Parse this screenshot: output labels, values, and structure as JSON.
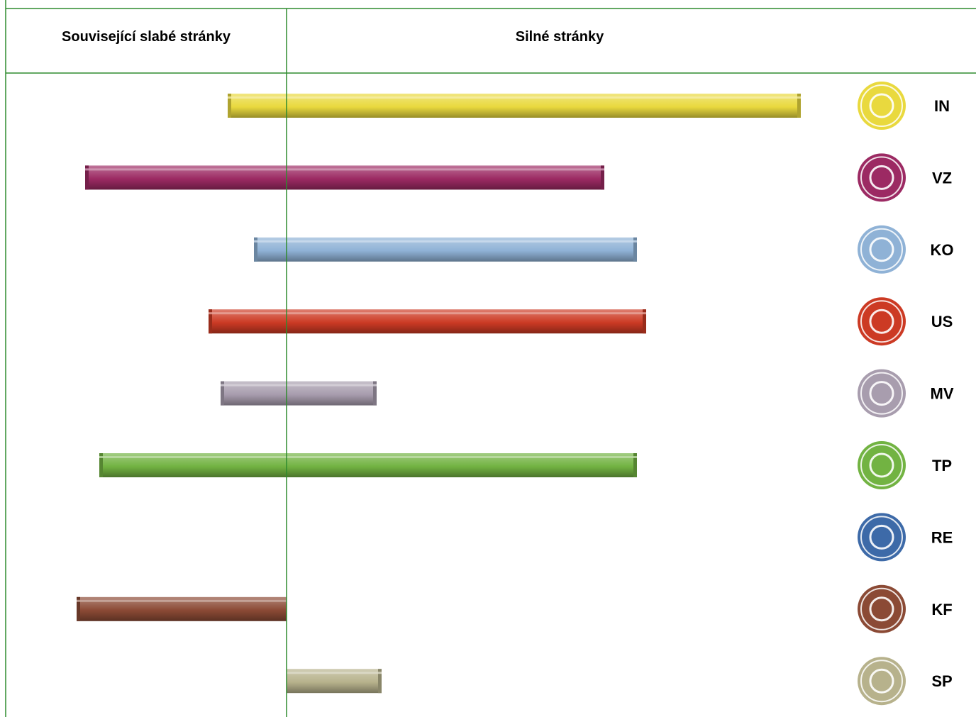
{
  "chart_data": {
    "type": "bar",
    "orientation": "horizontal-diverging",
    "headers": {
      "left": "Související slabé stránky",
      "right": "Silné stránky"
    },
    "categories": [
      "IN",
      "VZ",
      "KO",
      "US",
      "MV",
      "TP",
      "RE",
      "KF",
      "SP"
    ],
    "series": [
      {
        "values": [
          -83,
          -284,
          -46,
          -110,
          -93,
          -264,
          0,
          -296,
          0
        ]
      },
      {
        "values": [
          725,
          448,
          494,
          507,
          127,
          494,
          0,
          0,
          134
        ]
      }
    ],
    "colors": [
      "#e9d93e",
      "#9c2a63",
      "#8fb2d6",
      "#cc3a24",
      "#a89dae",
      "#72b342",
      "#3d6aa8",
      "#8b4a35",
      "#b7b28c"
    ],
    "icons": [
      "lightbulb-icon",
      "telephone-icon",
      "person-icon",
      "whip-icon",
      "eye-icon",
      "people-icon",
      "gears-icon",
      "wrench-hand-icon",
      "magnet-icon"
    ],
    "border_color": "#2e8b2e",
    "legend": "none",
    "grid": false
  }
}
